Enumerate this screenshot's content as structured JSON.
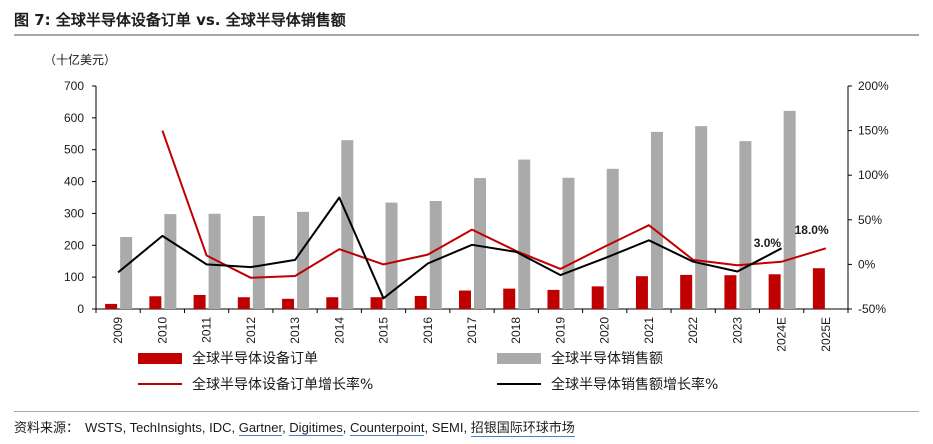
{
  "title": "图 7: 全球半导体设备订单 vs. 全球半导体销售额",
  "unit_label": "（十亿美元）",
  "source": {
    "lead": "资料来源：",
    "parts": [
      "WSTS",
      "TechInsights",
      "IDC",
      "Gartner",
      "Digitimes",
      "Counterpoint",
      "SEMI",
      "招银国际环球市场"
    ],
    "underlined": [
      "Gartner",
      "Digitimes",
      "Counterpoint",
      "招银国际环球市场"
    ]
  },
  "chart_data": {
    "type": "bar",
    "categories": [
      "2009",
      "2010",
      "2011",
      "2012",
      "2013",
      "2014",
      "2015",
      "2016",
      "2017",
      "2018",
      "2019",
      "2020",
      "2021",
      "2022",
      "2023",
      "2024E",
      "2025E"
    ],
    "series": [
      {
        "name": "全球半导体设备订单",
        "kind": "bar",
        "axis": "left",
        "color": "#c00000",
        "values": [
          16,
          40,
          44,
          37,
          32,
          37,
          37,
          41,
          58,
          64,
          60,
          71,
          103,
          107,
          106,
          109,
          128
        ]
      },
      {
        "name": "全球半导体销售额",
        "kind": "bar",
        "axis": "left",
        "color": "#aaaaaa",
        "values": [
          226,
          298,
          299,
          292,
          305,
          530,
          334,
          339,
          411,
          469,
          412,
          440,
          556,
          574,
          527,
          622,
          null
        ]
      },
      {
        "name": "全球半导体设备订单增长率%",
        "kind": "line",
        "axis": "right",
        "color": "#c00000",
        "values": [
          null,
          150,
          10,
          -15,
          -13,
          17,
          0,
          11,
          39,
          15,
          -5,
          20,
          44,
          5,
          -1,
          3,
          18
        ]
      },
      {
        "name": "全球半导体销售额增长率%",
        "kind": "line",
        "axis": "right",
        "color": "#000000",
        "values": [
          -9,
          32,
          0,
          -3,
          5,
          75,
          -38,
          1,
          22,
          14,
          -12,
          7,
          27,
          3,
          -8,
          18,
          null
        ]
      }
    ],
    "annotations": [
      "3.0%",
      "18.0%"
    ],
    "y_left": {
      "min": 0,
      "max": 700,
      "step": 100,
      "ticks": [
        "0",
        "100",
        "200",
        "300",
        "400",
        "500",
        "600",
        "700"
      ]
    },
    "y_right": {
      "min": -50,
      "max": 200,
      "step": 50,
      "ticks": [
        "-50%",
        "0%",
        "50%",
        "100%",
        "150%",
        "200%"
      ]
    },
    "grid": false,
    "legend_position": "bottom"
  }
}
